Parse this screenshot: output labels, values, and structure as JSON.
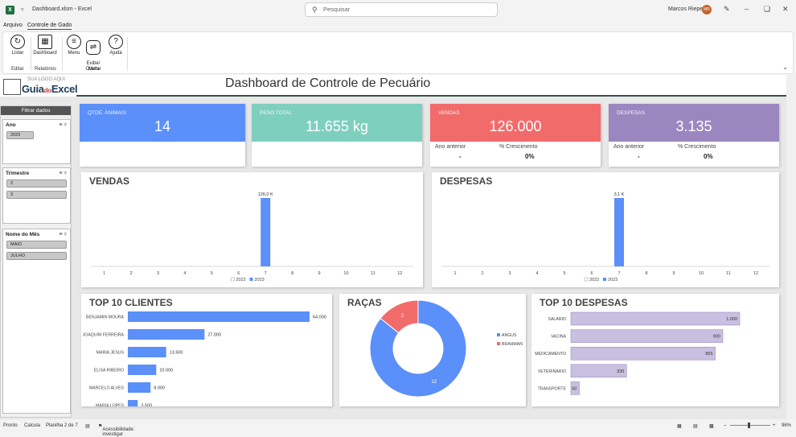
{
  "window": {
    "file_name": "Dashboard.xlsm",
    "app_name": "Excel",
    "search_placeholder": "Pesquisar",
    "user_name": "Marcos Rieper",
    "user_initials": "MR"
  },
  "menu_tabs": [
    {
      "label": "Arquivo"
    },
    {
      "label": "Controle de Gado"
    }
  ],
  "ribbon": {
    "buttons": [
      {
        "label": "Listar",
        "icon": "refresh-icon"
      },
      {
        "label": "Dashboard",
        "icon": "dashboard-icon"
      },
      {
        "label": "Menu",
        "icon": "menu-icon"
      },
      {
        "label": "Exibe/\nOcultar",
        "icon": "toggle-icon"
      },
      {
        "label": "Ajuda",
        "icon": "help-icon"
      }
    ],
    "groups": [
      "Editar",
      "Relatórios",
      "Menu"
    ]
  },
  "logo": {
    "small": "SUA LOGO AQUI",
    "brand_a": "Guia",
    "brand_b": "do",
    "brand_c": "Excel"
  },
  "dashboard_title": "Dashboard de Controle de Pecuário",
  "sidebar": {
    "header": "Filtrar dados",
    "slicers": [
      {
        "title": "Ano",
        "items": [
          "2023"
        ]
      },
      {
        "title": "Trimestre",
        "items": [
          "2",
          "3"
        ]
      },
      {
        "title": "Nome do Mês",
        "items": [
          "MAIO",
          "JULHO"
        ]
      }
    ]
  },
  "cards": [
    {
      "label": "QTDE. ANIMAIS",
      "value": "14",
      "color": "#5b8ff9"
    },
    {
      "label": "PESO TOTAL",
      "value": "11.655 kg",
      "color": "#7fcfbf"
    },
    {
      "label": "VENDAS",
      "value": "126.000",
      "color": "#f26b6b",
      "prev_label": "Ano anterior",
      "prev_value": "-",
      "growth_label": "% Crescimento",
      "growth_value": "0%"
    },
    {
      "label": "DESPESAS",
      "value": "3.135",
      "color": "#9b87c0",
      "prev_label": "Ano anterior",
      "prev_value": "-",
      "growth_label": "% Crescimento",
      "growth_value": "0%"
    }
  ],
  "panels": {
    "vendas": "VENDAS",
    "despesas": "DESPESAS",
    "clientes": "TOP 10 CLIENTES",
    "racas": "RAÇAS",
    "top_despesas": "TOP 10 DESPESAS"
  },
  "chart_data": [
    {
      "type": "bar",
      "title": "VENDAS",
      "categories": [
        "1",
        "2",
        "3",
        "4",
        "5",
        "6",
        "7",
        "8",
        "9",
        "10",
        "11",
        "12"
      ],
      "series": [
        {
          "name": "2022",
          "values": [
            0,
            0,
            0,
            0,
            0,
            0,
            0,
            0,
            0,
            0,
            0,
            0
          ],
          "color": "#ffffff"
        },
        {
          "name": "2023",
          "values": [
            0,
            0,
            0,
            0,
            0,
            0,
            126.0,
            0,
            0,
            0,
            0,
            0
          ],
          "color": "#5b8ff9"
        }
      ],
      "data_labels": {
        "7": "126,0 K"
      },
      "legend": "bottom"
    },
    {
      "type": "bar",
      "title": "DESPESAS",
      "categories": [
        "1",
        "2",
        "3",
        "4",
        "5",
        "6",
        "7",
        "8",
        "9",
        "10",
        "11",
        "12"
      ],
      "series": [
        {
          "name": "2022",
          "values": [
            0,
            0,
            0,
            0,
            0,
            0,
            0,
            0,
            0,
            0,
            0,
            0
          ],
          "color": "#ffffff"
        },
        {
          "name": "2023",
          "values": [
            0,
            0,
            0,
            0,
            0,
            0,
            3.1,
            0,
            0,
            0,
            0,
            0
          ],
          "color": "#5b8ff9"
        }
      ],
      "data_labels": {
        "7": "3,1 K"
      },
      "legend": "bottom"
    },
    {
      "type": "bar",
      "orientation": "horizontal",
      "title": "TOP 10 CLIENTES",
      "categories": [
        "BENJAMIN MOURA",
        "JOAQUIM FERREIRA",
        "MARIA JESUS",
        "ELISA RIBEIRO",
        "MARCELO ALVES",
        "MARIA LOPES"
      ],
      "values": [
        64000,
        27000,
        13500,
        10000,
        8000,
        3500
      ],
      "value_labels": [
        "64.000",
        "27.000",
        "13.500",
        "10.000",
        "8.000",
        "3.500"
      ],
      "color": "#5b8ff9"
    },
    {
      "type": "pie",
      "style": "donut",
      "title": "RAÇAS",
      "slices": [
        {
          "label": "ANGUS",
          "value": 12,
          "color": "#5b8ff9"
        },
        {
          "label": "BRAHMAN",
          "value": 2,
          "color": "#f26b6b"
        }
      ],
      "legend": "right"
    },
    {
      "type": "bar",
      "orientation": "horizontal",
      "title": "TOP 10 DESPESAS",
      "categories": [
        "SALÁRIO",
        "VACINA",
        "MEDICAMENTO",
        "VETERINÁRIO",
        "TRANSPORTE"
      ],
      "values": [
        1000,
        900,
        855,
        330,
        50
      ],
      "value_labels": [
        "1.000",
        "900",
        "855",
        "330",
        "50"
      ],
      "color": "#c9bfe0"
    }
  ],
  "status_bar": {
    "mode": "Pronto",
    "calc": "Calcula",
    "sheet_info": "Planilha 2 de 7",
    "accessibility": "Acessibilidade: investigar",
    "zoom": "96%"
  }
}
